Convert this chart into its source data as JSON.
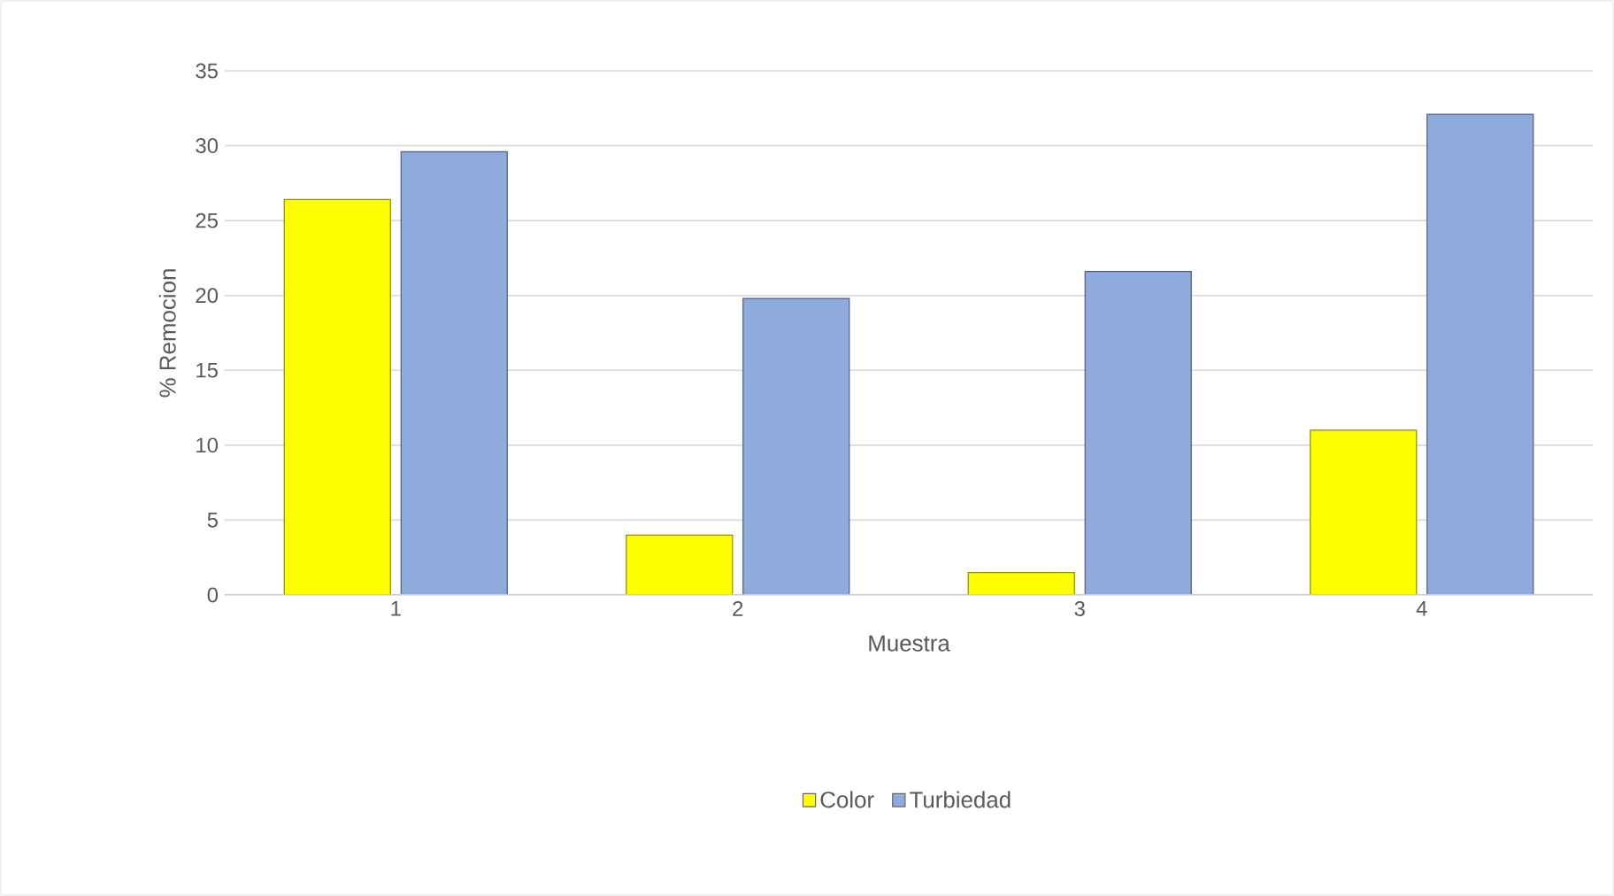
{
  "chart_data": {
    "type": "bar",
    "xlabel": "Muestra",
    "ylabel": "% Remocion",
    "categories": [
      "1",
      "2",
      "3",
      "4"
    ],
    "series": [
      {
        "name": "Color",
        "color": "#ffff00",
        "values": [
          26.4,
          4.0,
          1.5,
          11.0
        ]
      },
      {
        "name": "Turbiedad",
        "color": "#8faadc",
        "values": [
          29.6,
          19.8,
          21.6,
          32.1
        ]
      }
    ],
    "ylim": [
      0,
      35
    ],
    "yticks": [
      0,
      5,
      10,
      15,
      20,
      25,
      30,
      35
    ],
    "grid": "y",
    "legend": "bottom"
  }
}
